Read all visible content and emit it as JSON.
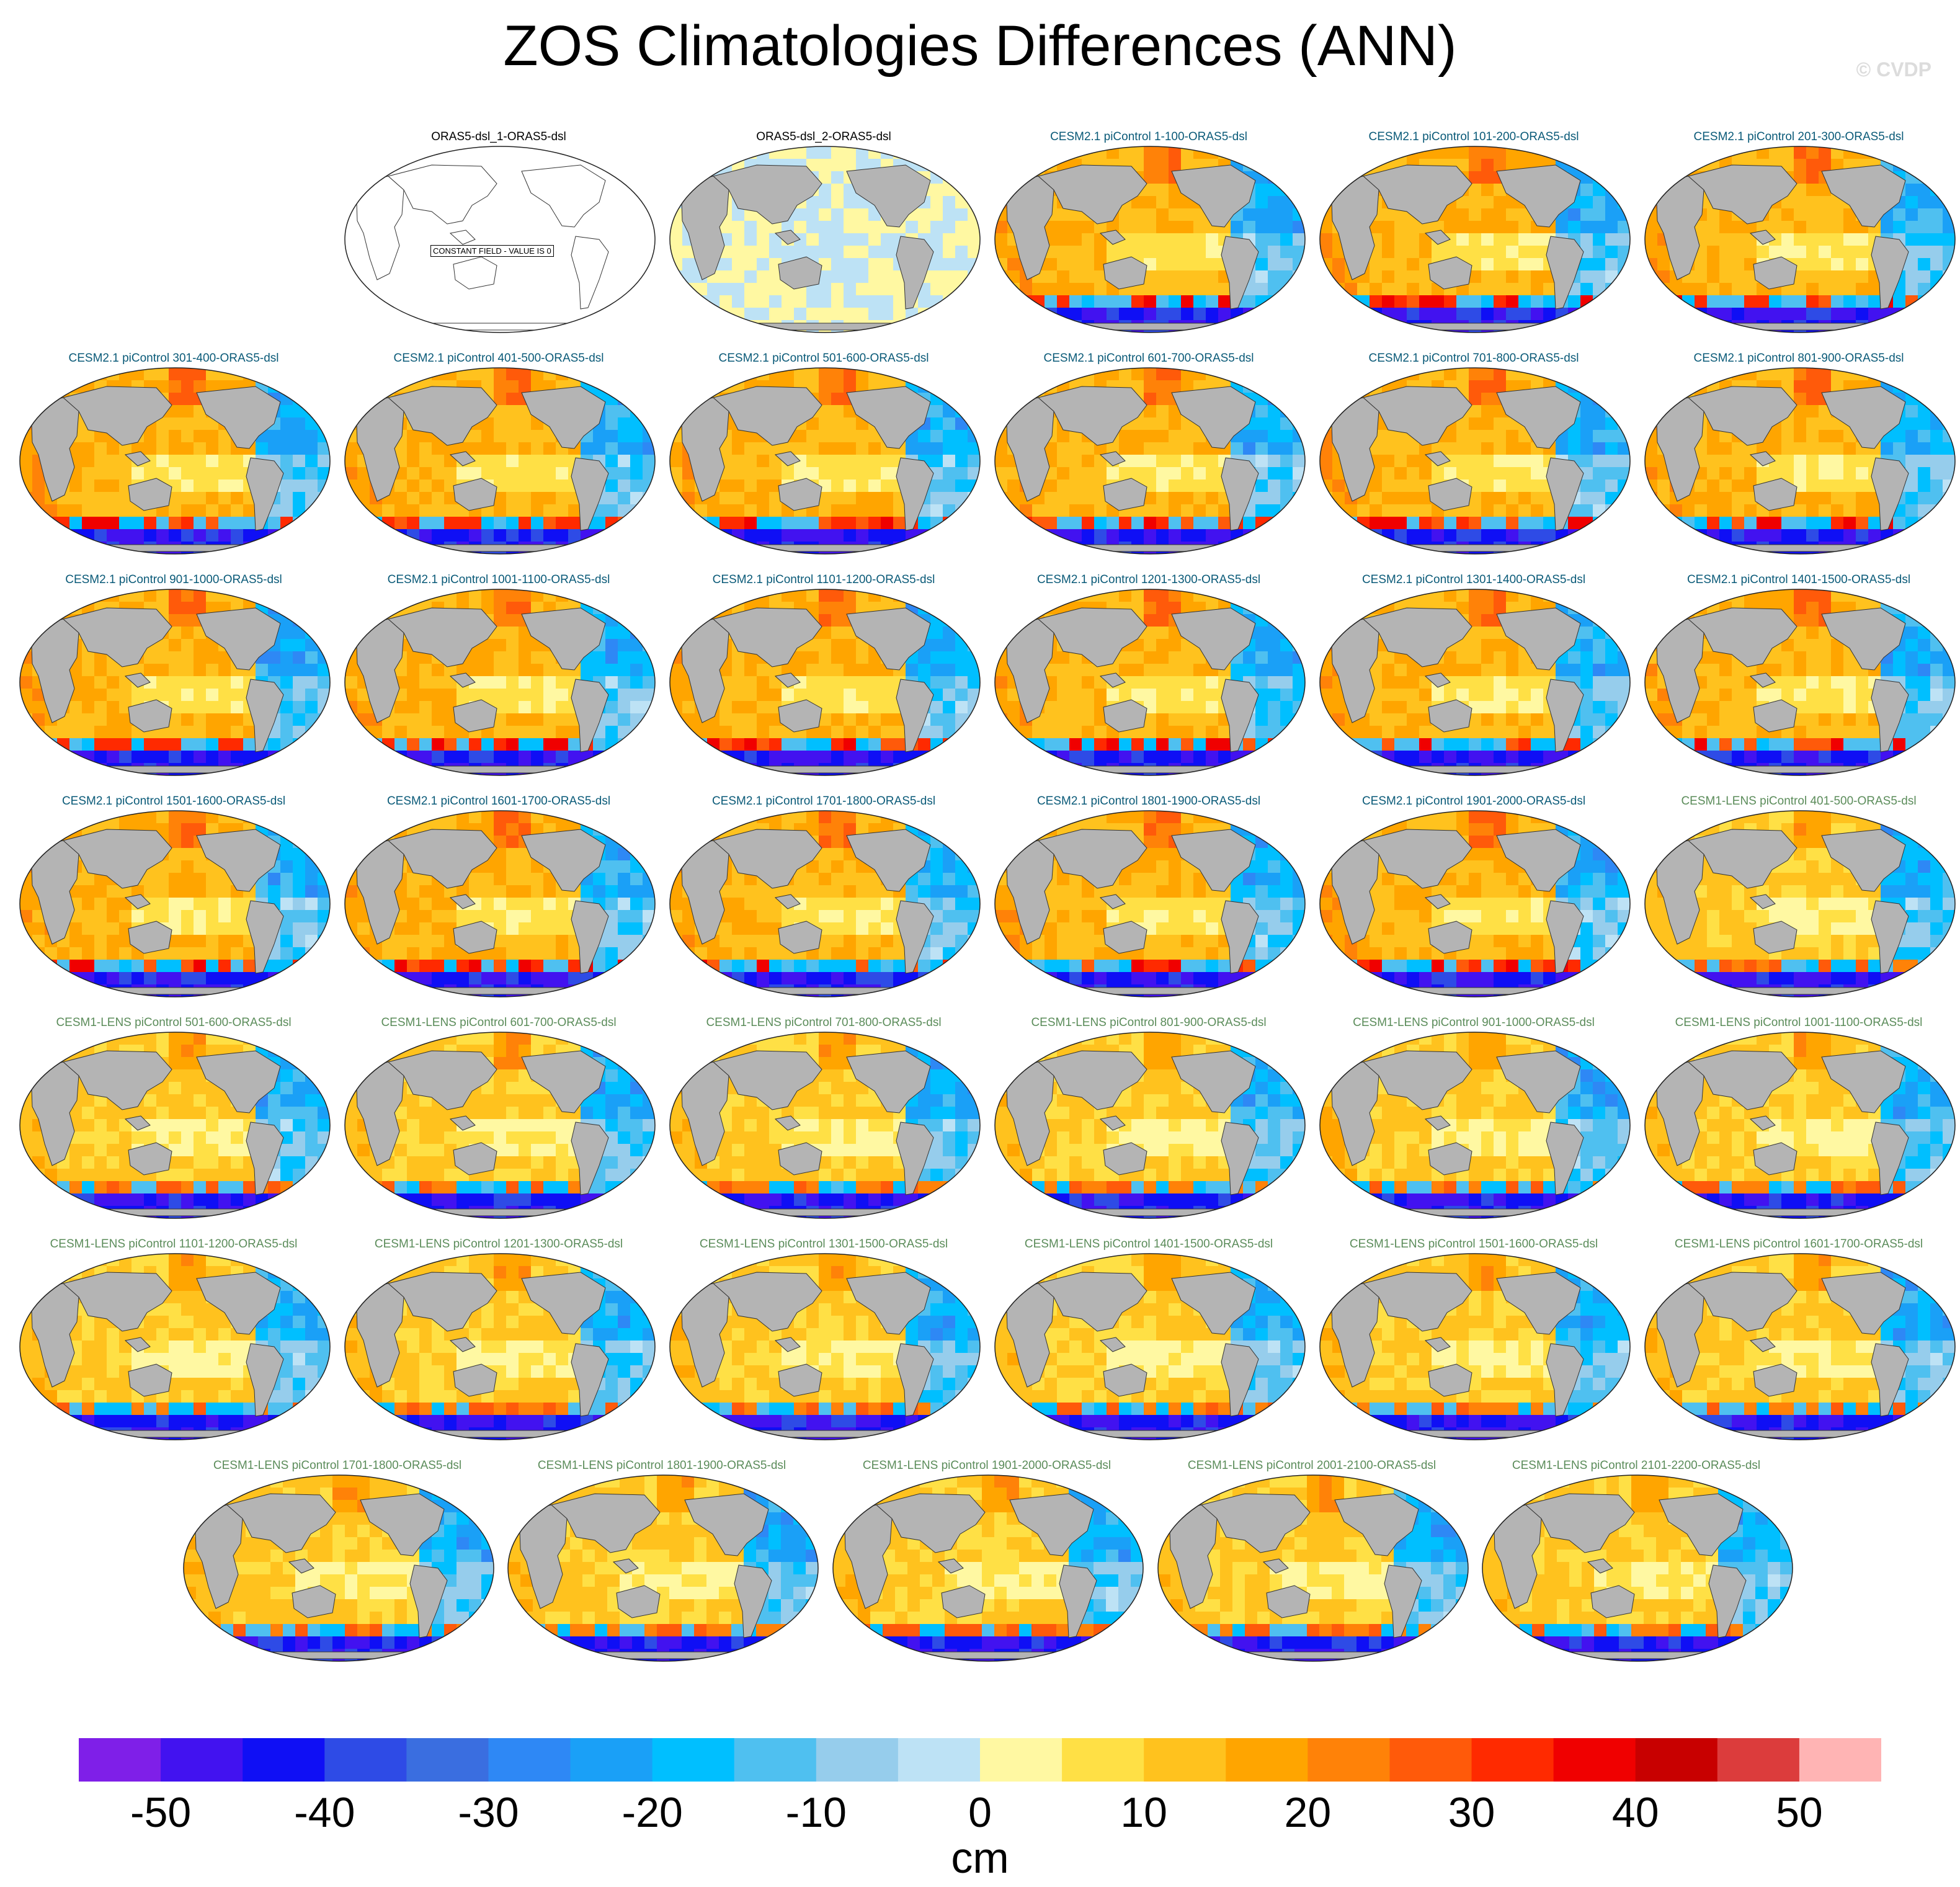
{
  "title": "ZOS Climatologies Differences (ANN)",
  "watermark": "© CVDP",
  "panel_title_colors": {
    "obs": "#000000",
    "cesm2": "#0a5a78",
    "cesm1": "#5b8c5a"
  },
  "panels": [
    {
      "title": "ORAS5-dsl_1-ORAS5-dsl",
      "group": "obs",
      "pattern": "constant",
      "note": "CONSTANT FIELD - VALUE IS 0"
    },
    {
      "title": "ORAS5-dsl_2-ORAS5-dsl",
      "group": "obs",
      "pattern": "small"
    },
    {
      "title": "CESM2.1 piControl 1-100-ORAS5-dsl",
      "group": "cesm2",
      "pattern": "strong"
    },
    {
      "title": "CESM2.1 piControl 101-200-ORAS5-dsl",
      "group": "cesm2",
      "pattern": "strong"
    },
    {
      "title": "CESM2.1 piControl 201-300-ORAS5-dsl",
      "group": "cesm2",
      "pattern": "strong"
    },
    {
      "title": "CESM2.1 piControl 301-400-ORAS5-dsl",
      "group": "cesm2",
      "pattern": "strong"
    },
    {
      "title": "CESM2.1 piControl 401-500-ORAS5-dsl",
      "group": "cesm2",
      "pattern": "strong"
    },
    {
      "title": "CESM2.1 piControl 501-600-ORAS5-dsl",
      "group": "cesm2",
      "pattern": "strong"
    },
    {
      "title": "CESM2.1 piControl 601-700-ORAS5-dsl",
      "group": "cesm2",
      "pattern": "strong"
    },
    {
      "title": "CESM2.1 piControl 701-800-ORAS5-dsl",
      "group": "cesm2",
      "pattern": "strong"
    },
    {
      "title": "CESM2.1 piControl 801-900-ORAS5-dsl",
      "group": "cesm2",
      "pattern": "strong"
    },
    {
      "title": "CESM2.1 piControl 901-1000-ORAS5-dsl",
      "group": "cesm2",
      "pattern": "strong"
    },
    {
      "title": "CESM2.1 piControl 1001-1100-ORAS5-dsl",
      "group": "cesm2",
      "pattern": "strong"
    },
    {
      "title": "CESM2.1 piControl 1101-1200-ORAS5-dsl",
      "group": "cesm2",
      "pattern": "strong"
    },
    {
      "title": "CESM2.1 piControl 1201-1300-ORAS5-dsl",
      "group": "cesm2",
      "pattern": "strong"
    },
    {
      "title": "CESM2.1 piControl 1301-1400-ORAS5-dsl",
      "group": "cesm2",
      "pattern": "strong"
    },
    {
      "title": "CESM2.1 piControl 1401-1500-ORAS5-dsl",
      "group": "cesm2",
      "pattern": "strong"
    },
    {
      "title": "CESM2.1 piControl 1501-1600-ORAS5-dsl",
      "group": "cesm2",
      "pattern": "strong"
    },
    {
      "title": "CESM2.1 piControl 1601-1700-ORAS5-dsl",
      "group": "cesm2",
      "pattern": "strong"
    },
    {
      "title": "CESM2.1 piControl 1701-1800-ORAS5-dsl",
      "group": "cesm2",
      "pattern": "strong"
    },
    {
      "title": "CESM2.1 piControl 1801-1900-ORAS5-dsl",
      "group": "cesm2",
      "pattern": "strong"
    },
    {
      "title": "CESM2.1 piControl 1901-2000-ORAS5-dsl",
      "group": "cesm2",
      "pattern": "strong"
    },
    {
      "title": "CESM1-LENS piControl 401-500-ORAS5-dsl",
      "group": "cesm1",
      "pattern": "weak"
    },
    {
      "title": "CESM1-LENS piControl 501-600-ORAS5-dsl",
      "group": "cesm1",
      "pattern": "weak"
    },
    {
      "title": "CESM1-LENS piControl 601-700-ORAS5-dsl",
      "group": "cesm1",
      "pattern": "weak"
    },
    {
      "title": "CESM1-LENS piControl 701-800-ORAS5-dsl",
      "group": "cesm1",
      "pattern": "weak"
    },
    {
      "title": "CESM1-LENS piControl 801-900-ORAS5-dsl",
      "group": "cesm1",
      "pattern": "weak"
    },
    {
      "title": "CESM1-LENS piControl 901-1000-ORAS5-dsl",
      "group": "cesm1",
      "pattern": "weak"
    },
    {
      "title": "CESM1-LENS piControl 1001-1100-ORAS5-dsl",
      "group": "cesm1",
      "pattern": "weak"
    },
    {
      "title": "CESM1-LENS piControl 1101-1200-ORAS5-dsl",
      "group": "cesm1",
      "pattern": "weak"
    },
    {
      "title": "CESM1-LENS piControl 1201-1300-ORAS5-dsl",
      "group": "cesm1",
      "pattern": "weak"
    },
    {
      "title": "CESM1-LENS piControl 1301-1500-ORAS5-dsl",
      "group": "cesm1",
      "pattern": "weak"
    },
    {
      "title": "CESM1-LENS piControl 1401-1500-ORAS5-dsl",
      "group": "cesm1",
      "pattern": "weak"
    },
    {
      "title": "CESM1-LENS piControl 1501-1600-ORAS5-dsl",
      "group": "cesm1",
      "pattern": "weak"
    },
    {
      "title": "CESM1-LENS piControl 1601-1700-ORAS5-dsl",
      "group": "cesm1",
      "pattern": "weak"
    },
    {
      "title": "CESM1-LENS piControl 1701-1800-ORAS5-dsl",
      "group": "cesm1",
      "pattern": "weak"
    },
    {
      "title": "CESM1-LENS piControl 1801-1900-ORAS5-dsl",
      "group": "cesm1",
      "pattern": "weak"
    },
    {
      "title": "CESM1-LENS piControl 1901-2000-ORAS5-dsl",
      "group": "cesm1",
      "pattern": "weak"
    },
    {
      "title": "CESM1-LENS piControl 2001-2100-ORAS5-dsl",
      "group": "cesm1",
      "pattern": "weak"
    },
    {
      "title": "CESM1-LENS piControl 2101-2200-ORAS5-dsl",
      "group": "cesm1",
      "pattern": "weak"
    }
  ],
  "colorbar": {
    "units": "cm",
    "levels_min": -55,
    "levels_step": 5,
    "colors": [
      "#7f1fe8",
      "#4212f0",
      "#0f0ff5",
      "#2e4be6",
      "#3a6ee0",
      "#2e88f5",
      "#1aa0f7",
      "#00bfff",
      "#4fc0f0",
      "#96cdec",
      "#bde2f5",
      "#fff8a2",
      "#ffe045",
      "#ffc21e",
      "#ffa500",
      "#ff8208",
      "#ff5a0a",
      "#ff2a00",
      "#f00000",
      "#c80000",
      "#dc3c3c",
      "#ffb4b4"
    ],
    "tick_labels": [
      {
        "value": -50,
        "text": "-50"
      },
      {
        "value": -40,
        "text": "-40"
      },
      {
        "value": -30,
        "text": "-30"
      },
      {
        "value": -20,
        "text": "-20"
      },
      {
        "value": -10,
        "text": "-10"
      },
      {
        "value": 0,
        "text": "0"
      },
      {
        "value": 10,
        "text": "10"
      },
      {
        "value": 20,
        "text": "20"
      },
      {
        "value": 30,
        "text": "30"
      },
      {
        "value": 40,
        "text": "40"
      },
      {
        "value": 50,
        "text": "50"
      }
    ]
  }
}
